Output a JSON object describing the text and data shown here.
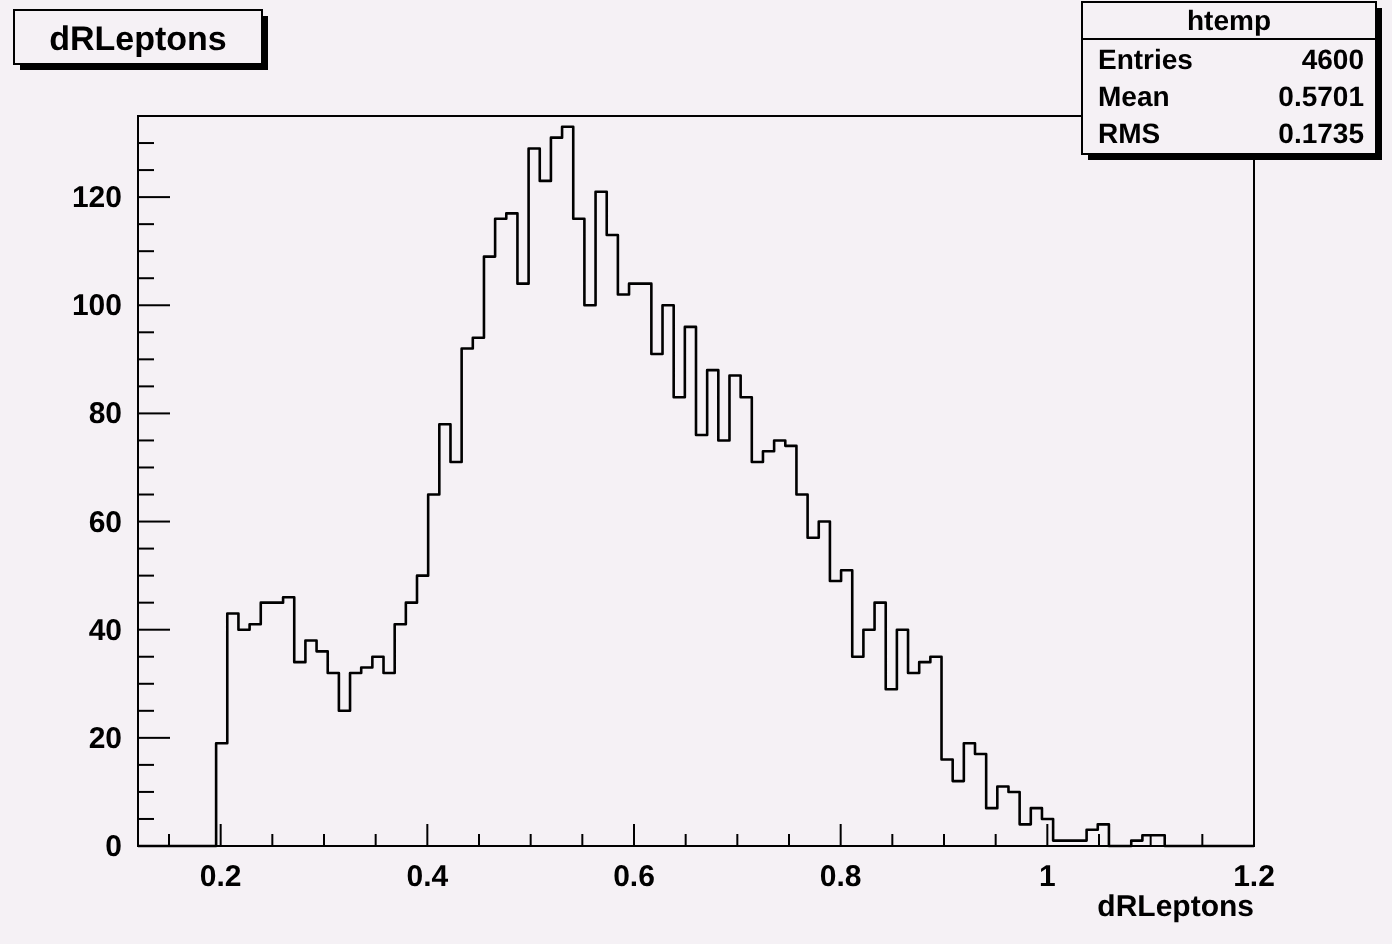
{
  "chart_data": {
    "type": "histogram",
    "title": "dRLeptons",
    "xlabel": "dRLeptons",
    "bins": [
      0.12,
      0.1308,
      0.1416,
      0.1524,
      0.1632,
      0.174,
      0.1848,
      0.1956,
      0.2064,
      0.2172,
      0.228,
      0.2388,
      0.2496,
      0.2604,
      0.2712,
      0.282,
      0.2928,
      0.3036,
      0.3144,
      0.3252,
      0.336,
      0.3468,
      0.3576,
      0.3684,
      0.3792,
      0.39,
      0.4008,
      0.4116,
      0.4224,
      0.4332,
      0.444,
      0.4548,
      0.4656,
      0.4764,
      0.4872,
      0.498,
      0.5088,
      0.5196,
      0.5304,
      0.5412,
      0.552,
      0.5628,
      0.5736,
      0.5844,
      0.5952,
      0.606,
      0.6168,
      0.6276,
      0.6384,
      0.6492,
      0.66,
      0.6708,
      0.6816,
      0.6924,
      0.7032,
      0.714,
      0.7248,
      0.7356,
      0.7464,
      0.7572,
      0.768,
      0.7788,
      0.7896,
      0.8004,
      0.8112,
      0.822,
      0.8328,
      0.8436,
      0.8544,
      0.8652,
      0.876,
      0.8868,
      0.8976,
      0.9084,
      0.9192,
      0.93,
      0.9408,
      0.9516,
      0.9624,
      0.9732,
      0.984,
      0.9948,
      1.0056,
      1.0164,
      1.0272,
      1.038,
      1.0488,
      1.0596,
      1.0704,
      1.0812,
      1.092,
      1.1028,
      1.1136,
      1.1244,
      1.1352,
      1.146,
      1.1568,
      1.1676,
      1.1784,
      1.1892,
      1.2
    ],
    "values": [
      0,
      0,
      0,
      0,
      0,
      0,
      0,
      19,
      43,
      40,
      41,
      45,
      45,
      46,
      34,
      38,
      36,
      32,
      25,
      32,
      33,
      35,
      32,
      41,
      45,
      50,
      65,
      78,
      71,
      92,
      94,
      109,
      116,
      117,
      104,
      129,
      123,
      131,
      133,
      116,
      100,
      121,
      113,
      102,
      104,
      104,
      91,
      100,
      83,
      96,
      76,
      88,
      75,
      87,
      83,
      71,
      73,
      75,
      74,
      65,
      57,
      60,
      49,
      51,
      35,
      40,
      45,
      29,
      40,
      32,
      34,
      35,
      16,
      12,
      19,
      17,
      7,
      11,
      10,
      4,
      7,
      5,
      1,
      1,
      1,
      3,
      4,
      0,
      0,
      1,
      2,
      2,
      0,
      0,
      0,
      0,
      0,
      0,
      0,
      0
    ],
    "color": "#000000",
    "xlim": [
      0.12,
      1.2
    ],
    "ylim": [
      0,
      135
    ],
    "xticks": [
      {
        "value": 0.15,
        "label": null
      },
      0.2,
      {
        "value": 0.25,
        "label": null
      },
      {
        "value": 0.3,
        "label": null
      },
      {
        "value": 0.35,
        "label": null
      },
      0.4,
      {
        "value": 0.45,
        "label": null
      },
      {
        "value": 0.5,
        "label": null
      },
      {
        "value": 0.55,
        "label": null
      },
      0.6,
      {
        "value": 0.65,
        "label": null
      },
      {
        "value": 0.7,
        "label": null
      },
      {
        "value": 0.75,
        "label": null
      },
      0.8,
      {
        "value": 0.85,
        "label": null
      },
      {
        "value": 0.9,
        "label": null
      },
      {
        "value": 0.95,
        "label": null
      },
      1,
      {
        "value": 1.05,
        "label": null
      },
      {
        "value": 1.1,
        "label": null
      },
      {
        "value": 1.15,
        "label": null
      },
      1.2
    ],
    "yticks": [
      0,
      {
        "value": 5,
        "label": null
      },
      {
        "value": 10,
        "label": null
      },
      {
        "value": 15,
        "label": null
      },
      20,
      {
        "value": 25,
        "label": null
      },
      {
        "value": 30,
        "label": null
      },
      {
        "value": 35,
        "label": null
      },
      40,
      {
        "value": 45,
        "label": null
      },
      {
        "value": 50,
        "label": null
      },
      {
        "value": 55,
        "label": null
      },
      60,
      {
        "value": 65,
        "label": null
      },
      {
        "value": 70,
        "label": null
      },
      {
        "value": 75,
        "label": null
      },
      80,
      {
        "value": 85,
        "label": null
      },
      {
        "value": 90,
        "label": null
      },
      {
        "value": 95,
        "label": null
      },
      100,
      {
        "value": 105,
        "label": null
      },
      {
        "value": 110,
        "label": null
      },
      {
        "value": 115,
        "label": null
      },
      120,
      {
        "value": 125,
        "label": null
      },
      {
        "value": 130,
        "label": null
      }
    ],
    "grid": false,
    "annotations": [
      "htemp",
      "Entries",
      "4600",
      "Mean",
      "0.5701",
      "RMS",
      "0.1735"
    ]
  }
}
